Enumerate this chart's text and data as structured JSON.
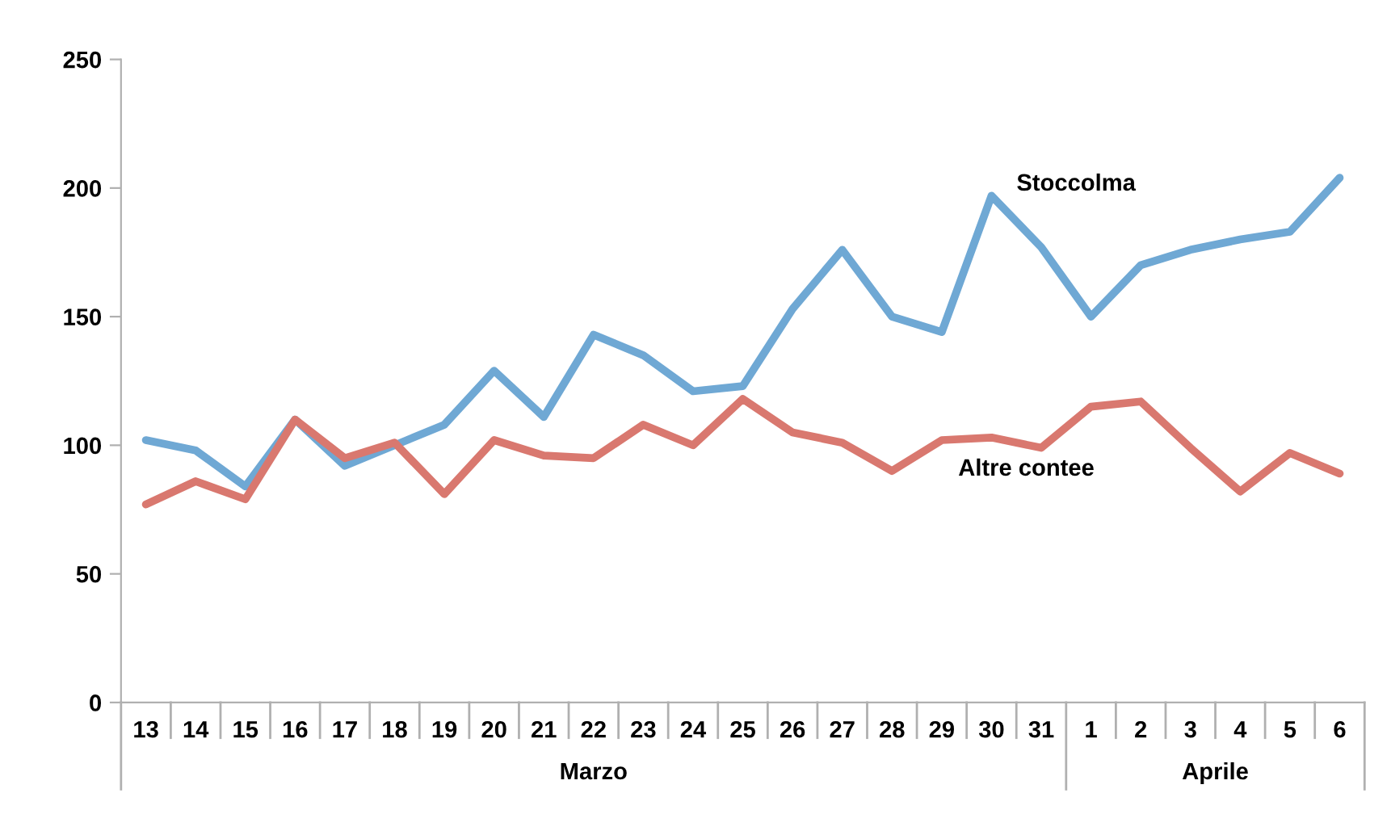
{
  "chart_data": {
    "type": "line",
    "categories": [
      "13",
      "14",
      "15",
      "16",
      "17",
      "18",
      "19",
      "20",
      "21",
      "22",
      "23",
      "24",
      "25",
      "26",
      "27",
      "28",
      "29",
      "30",
      "31",
      "1",
      "2",
      "3",
      "4",
      "5",
      "6"
    ],
    "series": [
      {
        "name": "Stoccolma",
        "color": "#6fa8d4",
        "values": [
          102,
          98,
          84,
          110,
          92,
          100,
          108,
          129,
          111,
          143,
          135,
          121,
          123,
          153,
          176,
          150,
          144,
          197,
          177,
          150,
          170,
          176,
          180,
          183,
          204
        ]
      },
      {
        "name": "Altre contee",
        "color": "#d9786f",
        "values": [
          77,
          86,
          79,
          110,
          95,
          101,
          81,
          102,
          96,
          95,
          108,
          100,
          118,
          105,
          101,
          90,
          102,
          103,
          99,
          115,
          117,
          99,
          82,
          97,
          89
        ]
      }
    ],
    "annotations": [
      "Marzo",
      "Aprile"
    ],
    "ylim": [
      0,
      250
    ],
    "yticks": [
      0,
      50,
      100,
      150,
      200,
      250
    ],
    "grid": false,
    "legend": false,
    "marker": "none",
    "line_style": "solid"
  }
}
